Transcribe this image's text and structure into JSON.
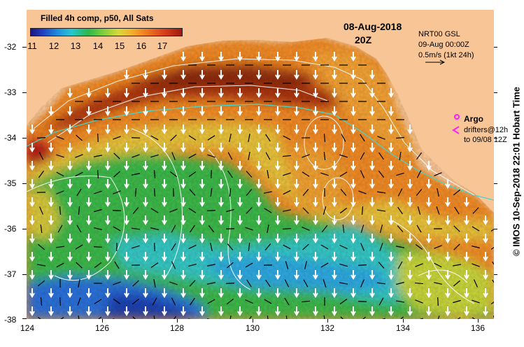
{
  "title": "Filled 4h comp, p50, All Sats",
  "date": "08-Aug-2018",
  "time": "20Z",
  "colorbar": {
    "ticks": [
      "11",
      "12",
      "13",
      "14",
      "15",
      "16",
      "17"
    ],
    "colors": [
      "#1a1580",
      "#2040c0",
      "#1e90e0",
      "#27c6d0",
      "#2db84a",
      "#7fcf3a",
      "#d8d83a",
      "#f2b230",
      "#f07d20",
      "#d8401c",
      "#a0180e"
    ]
  },
  "currents_info": {
    "source": "NRT00 GSL",
    "time": "09-Aug 00:00Z",
    "scale": "0.5m/s (1kt 24h)"
  },
  "argo": {
    "label": "Argo",
    "drifters": "drifters@12h",
    "to": "to 09/08 12Z"
  },
  "credit": "© IMOS 10-Sep-2018 22:01 Hobart Time",
  "axes": {
    "x_ticks": [
      "124",
      "126",
      "128",
      "130",
      "132",
      "134",
      "136"
    ],
    "y_ticks": [
      "-32",
      "-33",
      "-34",
      "-35",
      "-36",
      "-37",
      "-38"
    ]
  },
  "land_color": "#f8c596"
}
